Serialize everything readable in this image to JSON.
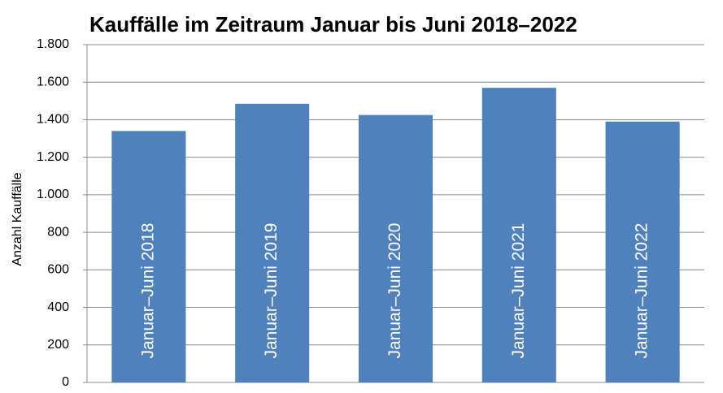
{
  "chart_data": {
    "type": "bar",
    "title": "Kauffälle im Zeitraum Januar bis Juni 2018–2022",
    "y_label": "Anzahl Kauffälle",
    "categories": [
      "Januar–Juni 2018",
      "Januar–Juni 2019",
      "Januar–Juni 2020",
      "Januar–Juni 2021",
      "Januar–Juni 2022"
    ],
    "values": [
      1340,
      1485,
      1425,
      1570,
      1390
    ],
    "color": "#4f81bd",
    "ylim": [
      0,
      1800
    ],
    "yticks": [
      0,
      200,
      400,
      600,
      800,
      {
        "value": 1000,
        "label": "1.000"
      },
      {
        "value": 1200,
        "label": "1.200"
      },
      {
        "value": 1400,
        "label": "1.400"
      },
      {
        "value": 1600,
        "label": "1.600"
      },
      {
        "value": 1800,
        "label": "1.800"
      }
    ],
    "grid": true
  }
}
